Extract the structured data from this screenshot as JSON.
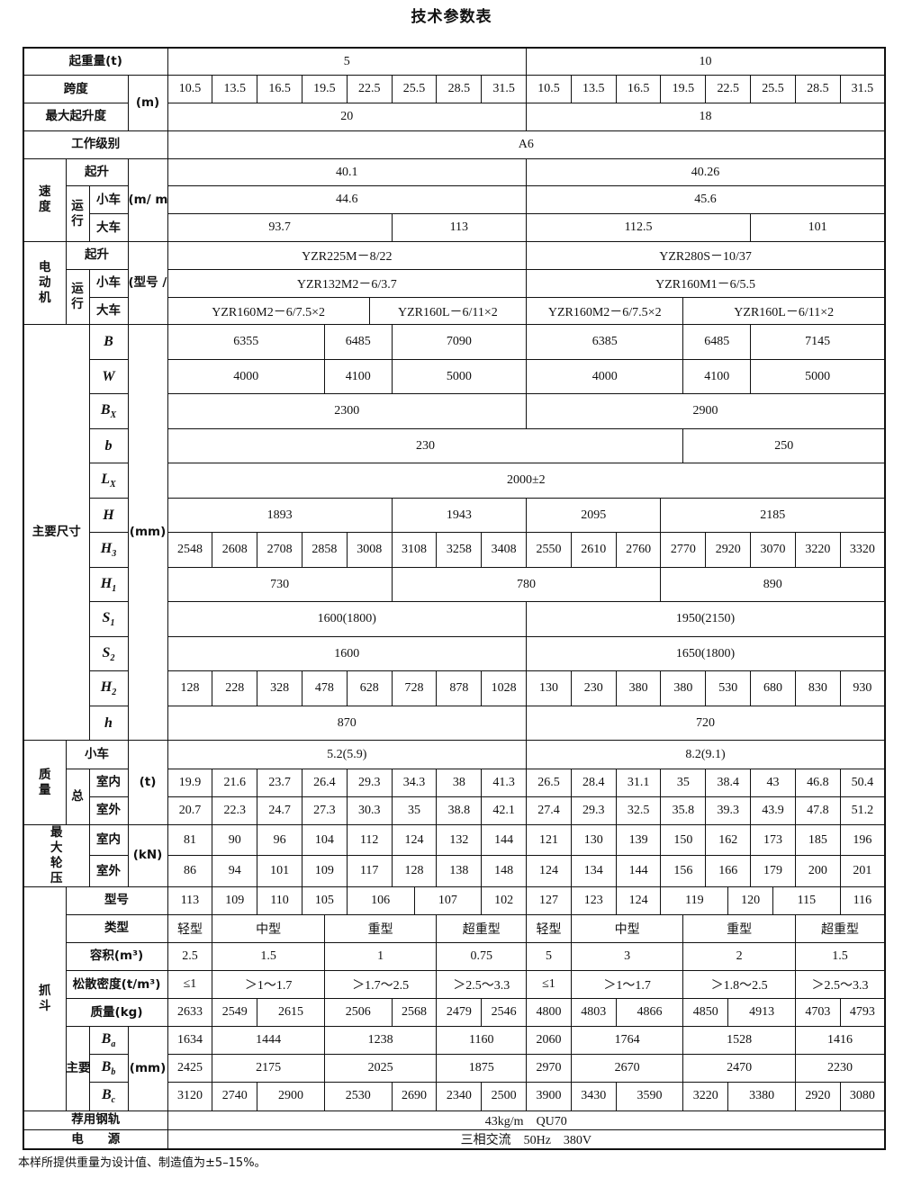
{
  "title": "技术参数表",
  "footnote": "本样所提供重量为设计值、制造值为±5–15%。",
  "labels": {
    "lifting_capacity": "起重量(t)",
    "span": "跨度",
    "unit_m": "(m)",
    "max_lift": "最大起升度",
    "work_class": "工作级别",
    "speed": "速度",
    "hoist": "起升",
    "travel": "运行",
    "trolley": "小车",
    "crane": "大车",
    "unit_speed": "(m/ min)",
    "motor": "电动机",
    "unit_motor": "(型号 / kW)",
    "main_dims": "主要尺寸",
    "unit_mm": "(mm)",
    "mass": "质量",
    "total": "总",
    "indoor": "室内",
    "outdoor": "室外",
    "unit_t": "(t)",
    "wheel_load": "最大轮压",
    "unit_kn": "(kN)",
    "grab": "抓斗",
    "grab_model": "型号",
    "grab_type": "类型",
    "volume": "容积(m³)",
    "density": "松散密度(t/m³)",
    "grab_mass": "质量(kg)",
    "grab_dims": "主要尺寸",
    "rail": "荐用钢轨",
    "power": "电　　源"
  },
  "symbols": {
    "B": {
      "base": "B",
      "sub": ""
    },
    "W": {
      "base": "W",
      "sub": ""
    },
    "Bx": {
      "base": "B",
      "sub": "X"
    },
    "b": {
      "base": "b",
      "sub": ""
    },
    "Lx": {
      "base": "L",
      "sub": "X"
    },
    "H": {
      "base": "H",
      "sub": ""
    },
    "H3": {
      "base": "H",
      "sub": "3"
    },
    "H1": {
      "base": "H",
      "sub": "1"
    },
    "S1": {
      "base": "S",
      "sub": "1"
    },
    "S2": {
      "base": "S",
      "sub": "2"
    },
    "H2": {
      "base": "H",
      "sub": "2"
    },
    "h": {
      "base": "h",
      "sub": ""
    },
    "Ba": {
      "base": "B",
      "sub": "a"
    },
    "Bb": {
      "base": "B",
      "sub": "b"
    },
    "Bc": {
      "base": "B",
      "sub": "c"
    }
  },
  "rows": {
    "capacity": [
      "5",
      "10"
    ],
    "span": [
      "10.5",
      "13.5",
      "16.5",
      "19.5",
      "22.5",
      "25.5",
      "28.5",
      "31.5",
      "10.5",
      "13.5",
      "16.5",
      "19.5",
      "22.5",
      "25.5",
      "28.5",
      "31.5"
    ],
    "max_lift": [
      "20",
      "18"
    ],
    "work_class": [
      "A6"
    ],
    "hoist_speed": [
      "40.1",
      "40.26"
    ],
    "trolley_speed": [
      "44.6",
      "45.6"
    ],
    "crane_speed": [
      "93.7",
      "113",
      "112.5",
      "101"
    ],
    "hoist_motor": [
      "YZR225M－8/22",
      "YZR280S－10/37"
    ],
    "trolley_motor": [
      "YZR132M2－6/3.7",
      "YZR160M1－6/5.5"
    ],
    "crane_motor": [
      "YZR160M2－6/7.5×2",
      "YZR160L－6/11×2",
      "YZR160M2－6/7.5×2",
      "YZR160L－6/11×2"
    ],
    "dims": {
      "B": [
        "6355",
        "6485",
        "7090",
        "6385",
        "6485",
        "7145"
      ],
      "W": [
        "4000",
        "4100",
        "5000",
        "4000",
        "4100",
        "5000"
      ],
      "Bx": [
        "2300",
        "2900"
      ],
      "b": [
        "230",
        "250"
      ],
      "Lx": [
        "2000±2"
      ],
      "H": [
        "1893",
        "1943",
        "2095",
        "2185"
      ],
      "H3": [
        "2548",
        "2608",
        "2708",
        "2858",
        "3008",
        "3108",
        "3258",
        "3408",
        "2550",
        "2610",
        "2760",
        "2770",
        "2920",
        "3070",
        "3220",
        "3320"
      ],
      "H1": [
        "730",
        "780",
        "890"
      ],
      "S1": [
        "1600(1800)",
        "1950(2150)"
      ],
      "S2": [
        "1600",
        "1650(1800)"
      ],
      "H2": [
        "128",
        "228",
        "328",
        "478",
        "628",
        "728",
        "878",
        "1028",
        "130",
        "230",
        "380",
        "380",
        "530",
        "680",
        "830",
        "930"
      ],
      "h": [
        "870",
        "720"
      ]
    },
    "trolley_mass": [
      "5.2(5.9)",
      "8.2(9.1)"
    ],
    "total_indoor": [
      "19.9",
      "21.6",
      "23.7",
      "26.4",
      "29.3",
      "34.3",
      "38",
      "41.3",
      "26.5",
      "28.4",
      "31.1",
      "35",
      "38.4",
      "43",
      "46.8",
      "50.4"
    ],
    "total_outdoor": [
      "20.7",
      "22.3",
      "24.7",
      "27.3",
      "30.3",
      "35",
      "38.8",
      "42.1",
      "27.4",
      "29.3",
      "32.5",
      "35.8",
      "39.3",
      "43.9",
      "47.8",
      "51.2"
    ],
    "wheel_indoor": [
      "81",
      "90",
      "96",
      "104",
      "112",
      "124",
      "132",
      "144",
      "121",
      "130",
      "139",
      "150",
      "162",
      "173",
      "185",
      "196"
    ],
    "wheel_outdoor": [
      "86",
      "94",
      "101",
      "109",
      "117",
      "128",
      "138",
      "148",
      "124",
      "134",
      "144",
      "156",
      "166",
      "179",
      "200",
      "201"
    ],
    "grab": {
      "model": [
        "113",
        "109",
        "110",
        "105",
        "106",
        "107",
        "102",
        "127",
        "123",
        "124",
        "119",
        "120",
        "115",
        "116"
      ],
      "type": [
        "轻型",
        "中型",
        "重型",
        "超重型",
        "轻型",
        "中型",
        "重型",
        "超重型"
      ],
      "volume": [
        "2.5",
        "1.5",
        "1",
        "0.75",
        "5",
        "3",
        "2",
        "1.5"
      ],
      "density": [
        "≤1",
        "＞1～1.7",
        "＞1.7～2.5",
        "＞2.5～3.3",
        "≤1",
        "＞1～1.7",
        "＞1.8～2.5",
        "＞2.5～3.3"
      ],
      "mass": [
        "2633",
        "2549",
        "2615",
        "2506",
        "2568",
        "2479",
        "2546",
        "4800",
        "4803",
        "4866",
        "4850",
        "4913",
        "4703",
        "4793"
      ],
      "Ba": [
        "1634",
        "1444",
        "1238",
        "1160",
        "2060",
        "1764",
        "1528",
        "1416"
      ],
      "Bb": [
        "2425",
        "2175",
        "2025",
        "1875",
        "2970",
        "2670",
        "2470",
        "2230"
      ],
      "Bc": [
        "3120",
        "2740",
        "2900",
        "2530",
        "2690",
        "2340",
        "2500",
        "3900",
        "3430",
        "3590",
        "3220",
        "3380",
        "2920",
        "3080"
      ]
    },
    "rail": [
      "43kg/m　QU70"
    ],
    "power": [
      "三相交流　50Hz　380V"
    ]
  }
}
